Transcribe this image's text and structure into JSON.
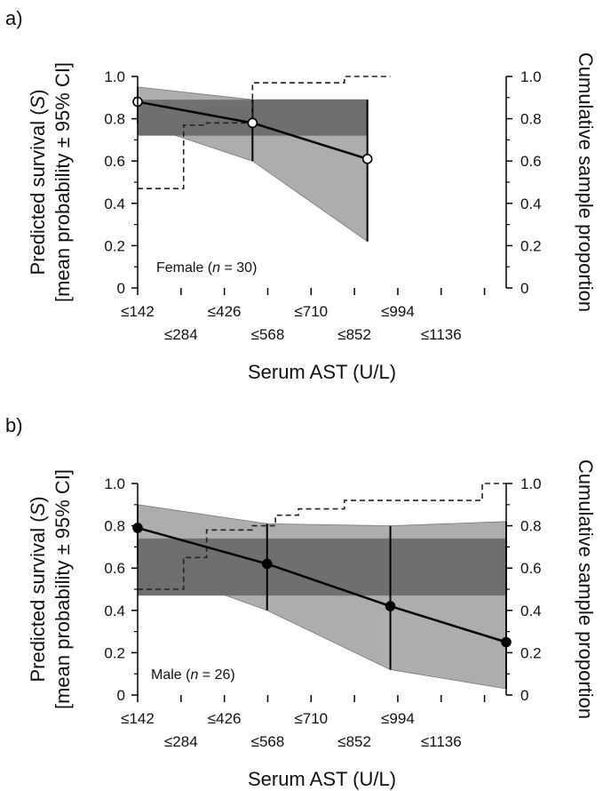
{
  "chart_data": [
    {
      "panel_label": "a)",
      "type": "line",
      "annotation": {
        "prefix": "Female (",
        "italic": "n",
        "suffix": " = 30)"
      },
      "xlabel": "Serum AST (U/L)",
      "ylabel_line1": "Predicted survival (",
      "ylabel_italic": "S",
      "ylabel_line1_end": ")",
      "ylabel_line2": "[mean probability ± 95% CI]",
      "y2label": "Cumulative sample proportion",
      "x_ticks": [
        "≤142",
        "≤284",
        "≤426",
        "≤568",
        "≤710",
        "≤852",
        "≤994",
        "≤1136"
      ],
      "xlim": [
        71,
        1210
      ],
      "y_ticks": [
        "0",
        "0.2",
        "0.4",
        "0.6",
        "0.8",
        "1.0"
      ],
      "ylim": [
        0,
        1
      ],
      "y2lim": [
        0,
        1
      ],
      "marker": "open",
      "series": [
        {
          "x": [
            71,
            426,
            781
          ],
          "y": [
            0.88,
            0.78,
            0.61
          ]
        }
      ],
      "ci_band": {
        "x": [
          71,
          426,
          781
        ],
        "lower": [
          0.78,
          0.6,
          0.22
        ],
        "upper": [
          0.95,
          0.89,
          0.89
        ]
      },
      "ci_band_inner": {
        "x": [
          71,
          781
        ],
        "lower": [
          0.72,
          0.72
        ],
        "upper": [
          0.89,
          0.89
        ]
      },
      "cumulative_step": {
        "x": [
          71,
          213,
          213,
          284,
          284,
          426,
          426,
          710,
          710,
          852
        ],
        "y": [
          0.47,
          0.47,
          0.77,
          0.77,
          0.78,
          0.78,
          0.97,
          0.97,
          1.0,
          1.0
        ]
      }
    },
    {
      "panel_label": "b)",
      "type": "line",
      "annotation": {
        "prefix": "Male (",
        "italic": "n",
        "suffix": " = 26)"
      },
      "xlabel": "Serum AST (U/L)",
      "ylabel_line1": "Predicted survival (",
      "ylabel_italic": "S",
      "ylabel_line1_end": ")",
      "ylabel_line2": "[mean probability ± 95% CI]",
      "y2label": "Cumulative sample proportion",
      "x_ticks": [
        "≤142",
        "≤284",
        "≤426",
        "≤568",
        "≤710",
        "≤852",
        "≤994",
        "≤1136"
      ],
      "xlim": [
        71,
        1210
      ],
      "y_ticks": [
        "0",
        "0.2",
        "0.4",
        "0.6",
        "0.8",
        "1.0"
      ],
      "ylim": [
        0,
        1
      ],
      "y2lim": [
        0,
        1
      ],
      "marker": "filled",
      "series": [
        {
          "x": [
            71,
            471,
            852,
            1260
          ],
          "y": [
            0.79,
            0.62,
            0.42,
            0.25
          ]
        }
      ],
      "ci_band": {
        "x": [
          71,
          471,
          852,
          1260
        ],
        "lower": [
          0.62,
          0.4,
          0.12,
          0.03
        ],
        "upper": [
          0.9,
          0.81,
          0.8,
          0.82
        ]
      },
      "ci_band_inner": {
        "x": [
          71,
          1260
        ],
        "lower": [
          0.47,
          0.47
        ],
        "upper": [
          0.74,
          0.74
        ]
      },
      "cumulative_step": {
        "x": [
          71,
          213,
          213,
          284,
          284,
          426,
          426,
          497,
          497,
          568,
          568,
          710,
          710,
          1136,
          1136,
          1260
        ],
        "y": [
          0.5,
          0.5,
          0.65,
          0.65,
          0.78,
          0.78,
          0.8,
          0.8,
          0.85,
          0.85,
          0.88,
          0.88,
          0.92,
          0.92,
          1.0,
          1.0
        ]
      }
    }
  ]
}
